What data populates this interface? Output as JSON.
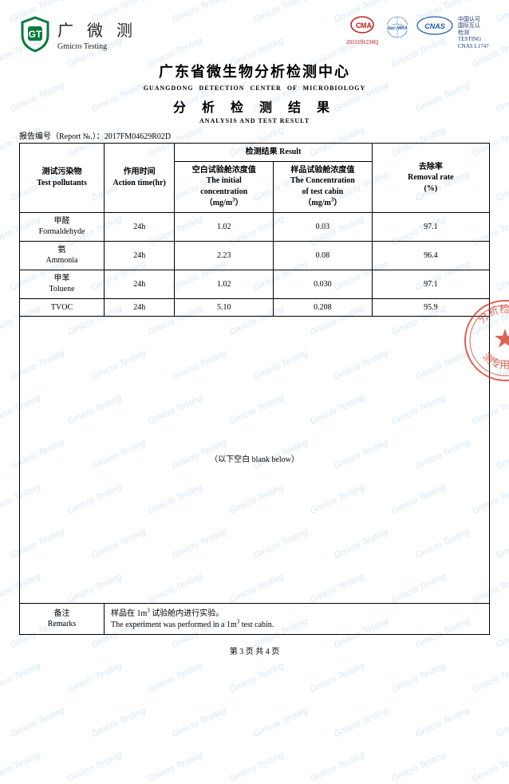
{
  "watermark": "Gmicro Testing",
  "header": {
    "logo_cn": "广 微 测",
    "logo_en": "Gmicro Testing",
    "logo_letters": "GT",
    "logo_color": "#0a7a3d",
    "cma_label": "MA",
    "cma_c": "C",
    "cma_number": "2015191236Q",
    "cma_color": "#c01818",
    "ilac_text": "ilac-MRA",
    "ilac_color": "#1e5aa8",
    "cnas_text": "CNAS",
    "cnas_color": "#1e5aa8",
    "cnas_side": "中国认可\n国际互认\n检测\nTESTING\nCNAS L1747"
  },
  "titles": {
    "main_cn": "广东省微生物分析检测中心",
    "main_en": "GUANGDONG  DETECTION  CENTER  OF  MICROBIOLOGY",
    "sub_cn": "分 析 检 测 结 果",
    "sub_en": "ANALYSIS AND TEST RESULT"
  },
  "report_no": {
    "label": "报告编号（Report №.）：",
    "value": "2017FM04629R02D"
  },
  "table": {
    "headers": {
      "pollutants_cn": "测试污染物",
      "pollutants_en": "Test pollutants",
      "action_cn": "作用时间",
      "action_en": "Action time(hr)",
      "result_group": "检测结果 Result",
      "initial_cn": "空白试验舱浓度值",
      "initial_en1": "The initial",
      "initial_en2": "concentration",
      "unit": "（mg/m³）",
      "cabin_cn": "样品试验舱浓度值",
      "cabin_en1": "The Concentration",
      "cabin_en2": "of test cabin",
      "removal_cn": "去除率",
      "removal_en1": "Removal rate",
      "removal_en2": "(%)"
    },
    "rows": [
      {
        "name_cn": "甲醛",
        "name_en": "Formaldehyde",
        "time": "24h",
        "initial": "1.02",
        "cabin": "0.03",
        "removal": "97.1"
      },
      {
        "name_cn": "氨",
        "name_en": "Ammonia",
        "time": "24h",
        "initial": "2.23",
        "cabin": "0.08",
        "removal": "96.4"
      },
      {
        "name_cn": "甲苯",
        "name_en": "Toluene",
        "time": "24h",
        "initial": "1.02",
        "cabin": "0.030",
        "removal": "97.1"
      },
      {
        "name_cn": "TVOC",
        "name_en": "",
        "time": "24h",
        "initial": "5.10",
        "cabin": "0.208",
        "removal": "95.9"
      }
    ],
    "blank_text": "（以下空白 blank below）",
    "remarks_label_cn": "备注",
    "remarks_label_en": "Remarks",
    "remarks_cn": "样品在 1m³ 试验舱内进行实验。",
    "remarks_en": "The experiment was performed in a 1m³ test cabin."
  },
  "pager": "第 3 页 共 4 页",
  "stamp": {
    "color": "#d43b2a",
    "text_top": "分析检",
    "text_bottom": "测专用"
  },
  "colors": {
    "watermark": "#5a9fd4",
    "border": "#000000",
    "background": "#ffffff"
  },
  "col_widths": [
    "18%",
    "15%",
    "21%",
    "21%",
    "25%"
  ]
}
